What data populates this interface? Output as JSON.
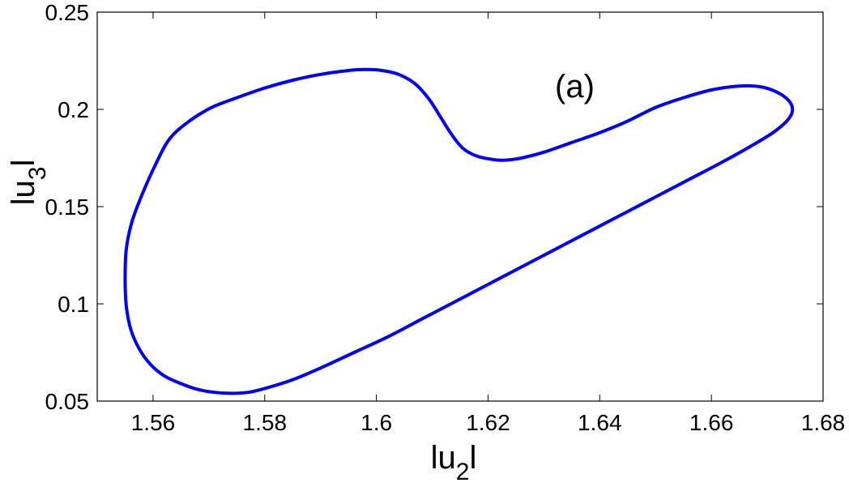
{
  "chart_data": {
    "type": "line",
    "panel_label": "(a)",
    "xlabel": {
      "prefix": "lu",
      "sub": "2",
      "suffix": "l"
    },
    "ylabel": {
      "prefix": "lu",
      "sub": "3",
      "suffix": "l"
    },
    "xlim": [
      1.55,
      1.68
    ],
    "ylim": [
      0.05,
      0.25
    ],
    "xticks": [
      1.56,
      1.58,
      1.6,
      1.62,
      1.64,
      1.66,
      1.68
    ],
    "xtick_labels": [
      "1.56",
      "1.58",
      "1.6",
      "1.62",
      "1.64",
      "1.66",
      "1.68"
    ],
    "yticks": [
      0.05,
      0.1,
      0.15,
      0.2,
      0.25
    ],
    "ytick_labels": [
      "0.05",
      "0.1",
      "0.15",
      "0.2",
      "0.25"
    ],
    "grid": false,
    "series": [
      {
        "color": "#0000ff",
        "closed": true,
        "x": [
          1.563,
          1.5665,
          1.5705,
          1.575,
          1.58,
          1.585,
          1.59,
          1.595,
          1.598,
          1.601,
          1.604,
          1.607,
          1.6095,
          1.6115,
          1.6135,
          1.6155,
          1.618,
          1.6215,
          1.6235,
          1.626,
          1.63,
          1.635,
          1.64,
          1.645,
          1.65,
          1.655,
          1.66,
          1.665,
          1.669,
          1.672,
          1.674,
          1.6745,
          1.6735,
          1.671,
          1.667,
          1.662,
          1.656,
          1.65,
          1.644,
          1.638,
          1.632,
          1.626,
          1.62,
          1.614,
          1.608,
          1.602,
          1.596,
          1.59,
          1.585,
          1.58,
          1.577,
          1.574,
          1.571,
          1.568,
          1.565,
          1.562,
          1.5595,
          1.5575,
          1.556,
          1.5552,
          1.555,
          1.5552,
          1.5562,
          1.558,
          1.5605,
          1.563
        ],
        "y": [
          0.185,
          0.194,
          0.201,
          0.206,
          0.211,
          0.215,
          0.218,
          0.22,
          0.2205,
          0.22,
          0.218,
          0.213,
          0.205,
          0.196,
          0.187,
          0.18,
          0.176,
          0.174,
          0.174,
          0.175,
          0.178,
          0.183,
          0.188,
          0.194,
          0.201,
          0.206,
          0.21,
          0.212,
          0.2115,
          0.2085,
          0.204,
          0.199,
          0.194,
          0.188,
          0.181,
          0.173,
          0.164,
          0.155,
          0.146,
          0.137,
          0.128,
          0.119,
          0.11,
          0.101,
          0.092,
          0.083,
          0.075,
          0.067,
          0.061,
          0.0565,
          0.0545,
          0.054,
          0.0545,
          0.056,
          0.059,
          0.063,
          0.069,
          0.077,
          0.087,
          0.099,
          0.113,
          0.128,
          0.142,
          0.156,
          0.172,
          0.185
        ]
      }
    ]
  }
}
